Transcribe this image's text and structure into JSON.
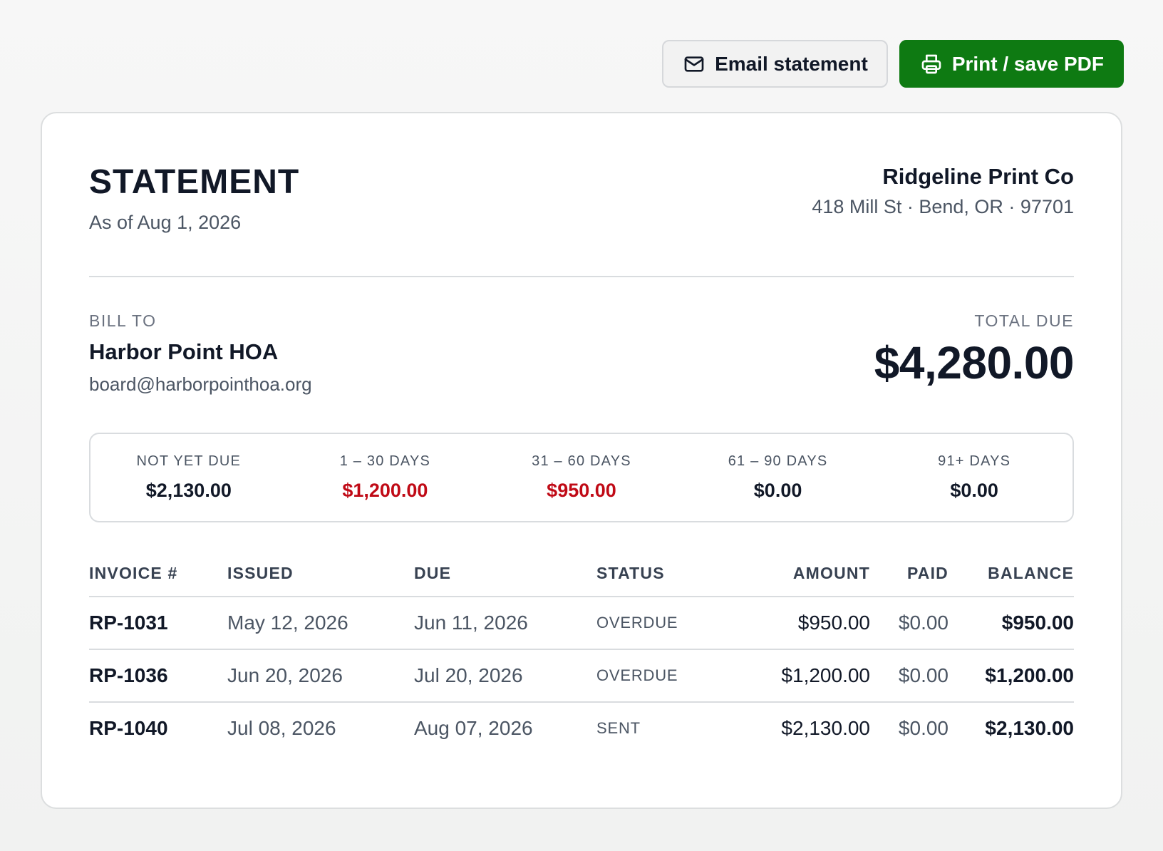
{
  "toolbar": {
    "email_label": "Email statement",
    "print_label": "Print / save PDF"
  },
  "colors": {
    "primary": "#0e7a12",
    "overdue": "#c00a16"
  },
  "statement": {
    "title": "STATEMENT",
    "as_of": "As of Aug 1, 2026"
  },
  "company": {
    "name": "Ridgeline Print Co",
    "address": "418 Mill St · Bend, OR · 97701"
  },
  "bill_to": {
    "label": "BILL TO",
    "name": "Harbor Point HOA",
    "email": "board@harborpointhoa.org"
  },
  "total_due": {
    "label": "TOTAL DUE",
    "amount": "$4,280.00"
  },
  "aging": [
    {
      "label": "NOT YET DUE",
      "value": "$2,130.00",
      "overdue": false
    },
    {
      "label": "1 – 30 DAYS",
      "value": "$1,200.00",
      "overdue": true
    },
    {
      "label": "31 – 60 DAYS",
      "value": "$950.00",
      "overdue": true
    },
    {
      "label": "61 – 90 DAYS",
      "value": "$0.00",
      "overdue": false
    },
    {
      "label": "91+ DAYS",
      "value": "$0.00",
      "overdue": false
    }
  ],
  "table": {
    "headers": {
      "invoice": "INVOICE #",
      "issued": "ISSUED",
      "due": "DUE",
      "status": "STATUS",
      "amount": "AMOUNT",
      "paid": "PAID",
      "balance": "BALANCE"
    },
    "rows": [
      {
        "invoice": "RP-1031",
        "issued": "May 12, 2026",
        "due": "Jun 11, 2026",
        "status": "OVERDUE",
        "amount": "$950.00",
        "paid": "$0.00",
        "balance": "$950.00"
      },
      {
        "invoice": "RP-1036",
        "issued": "Jun 20, 2026",
        "due": "Jul 20, 2026",
        "status": "OVERDUE",
        "amount": "$1,200.00",
        "paid": "$0.00",
        "balance": "$1,200.00"
      },
      {
        "invoice": "RP-1040",
        "issued": "Jul 08, 2026",
        "due": "Aug 07, 2026",
        "status": "SENT",
        "amount": "$2,130.00",
        "paid": "$0.00",
        "balance": "$2,130.00"
      }
    ]
  }
}
